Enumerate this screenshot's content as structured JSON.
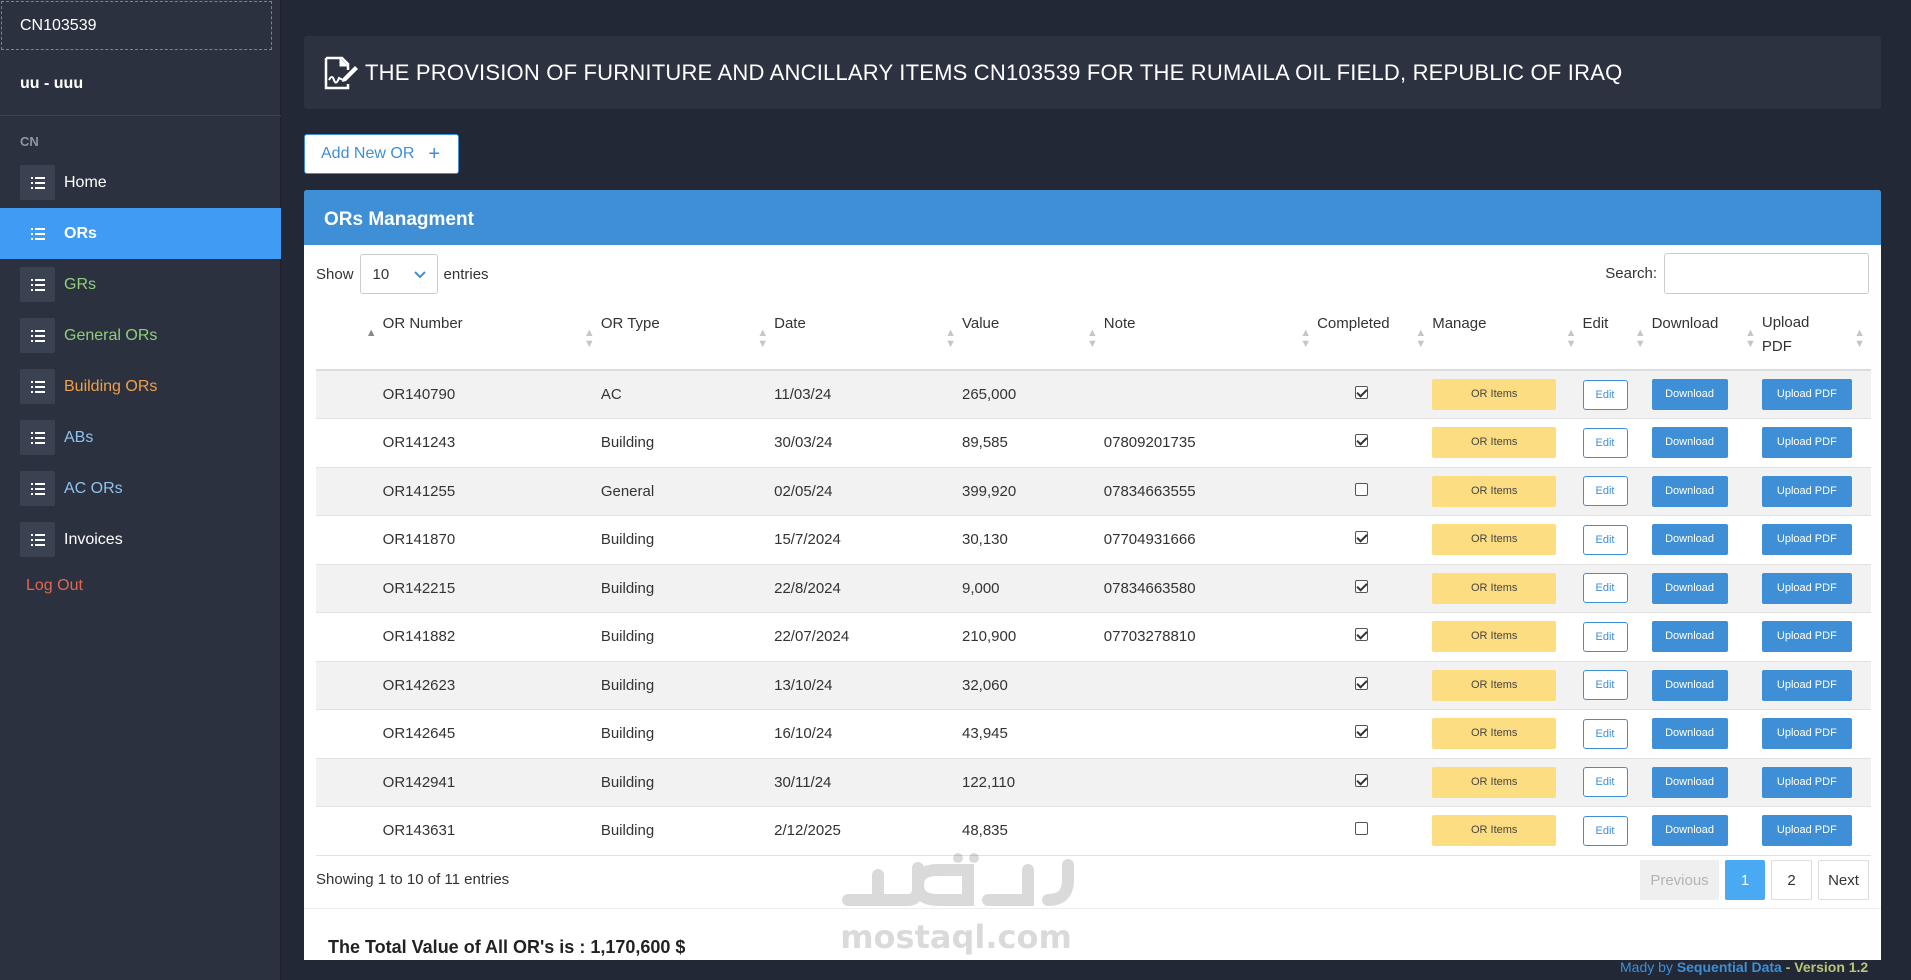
{
  "sidebar": {
    "brand": "CN103539",
    "user": "uu - uuu",
    "section": "CN",
    "items": [
      {
        "label": "Home",
        "color": "#ffffff"
      },
      {
        "label": "ORs",
        "color": "#ffffff"
      },
      {
        "label": "GRs",
        "color": "#8fd07a"
      },
      {
        "label": "General ORs",
        "color": "#8fd07a"
      },
      {
        "label": "Building ORs",
        "color": "#f0a04b"
      },
      {
        "label": "ABs",
        "color": "#8fc3f0"
      },
      {
        "label": "AC ORs",
        "color": "#8fc3f0"
      },
      {
        "label": "Invoices",
        "color": "#ffffff"
      }
    ],
    "logout": "Log Out"
  },
  "header": {
    "title": "THE PROVISION OF FURNITURE AND ANCILLARY ITEMS CN103539 FOR THE RUMAILA OIL FIELD, REPUBLIC OF IRAQ",
    "icon": "signature-icon"
  },
  "actions": {
    "add_label": "Add New OR",
    "add_icon": "+"
  },
  "panel": {
    "title": "ORs Managment",
    "show_label": "Show",
    "page_length": "10",
    "entries_label": "entries",
    "search_label": "Search:",
    "search_value": ""
  },
  "table": {
    "columns": [
      "OR Number",
      "OR Type",
      "Date",
      "Value",
      "Note",
      "Completed",
      "Manage",
      "Edit",
      "Download",
      "Upload PDF"
    ],
    "rows": [
      {
        "or_number": "OR140790",
        "type": "AC",
        "date": "11/03/24",
        "value": "265,000",
        "note": "",
        "completed": true
      },
      {
        "or_number": "OR141243",
        "type": "Building",
        "date": "30/03/24",
        "value": "89,585",
        "note": "07809201735",
        "completed": true
      },
      {
        "or_number": "OR141255",
        "type": "General",
        "date": "02/05/24",
        "value": "399,920",
        "note": "07834663555",
        "completed": false
      },
      {
        "or_number": "OR141870",
        "type": "Building",
        "date": "15/7/2024",
        "value": "30,130",
        "note": "07704931666",
        "completed": true
      },
      {
        "or_number": "OR142215",
        "type": "Building",
        "date": "22/8/2024",
        "value": "9,000",
        "note": "07834663580",
        "completed": true
      },
      {
        "or_number": "OR141882",
        "type": "Building",
        "date": "22/07/2024",
        "value": "210,900",
        "note": "07703278810",
        "completed": true
      },
      {
        "or_number": "OR142623",
        "type": "Building",
        "date": "13/10/24",
        "value": "32,060",
        "note": "",
        "completed": true
      },
      {
        "or_number": "OR142645",
        "type": "Building",
        "date": "16/10/24",
        "value": "43,945",
        "note": "",
        "completed": true
      },
      {
        "or_number": "OR142941",
        "type": "Building",
        "date": "30/11/24",
        "value": "122,110",
        "note": "",
        "completed": true
      },
      {
        "or_number": "OR143631",
        "type": "Building",
        "date": "2/12/2025",
        "value": "48,835",
        "note": "",
        "completed": false
      }
    ],
    "row_buttons": {
      "manage": "OR Items",
      "edit": "Edit",
      "download": "Download",
      "upload": "Upload PDF"
    }
  },
  "footer_info": "Showing 1 to 10 of 11 entries",
  "pagination": {
    "previous": "Previous",
    "pages": [
      "1",
      "2"
    ],
    "current": "1",
    "next": "Next"
  },
  "total": "The Total Value of All OR's is : 1,170,600 $",
  "watermark": "mostaql.com",
  "credit": {
    "prefix": "Mady by ",
    "company": "Sequential Data",
    "version": " - Version 1.2"
  }
}
